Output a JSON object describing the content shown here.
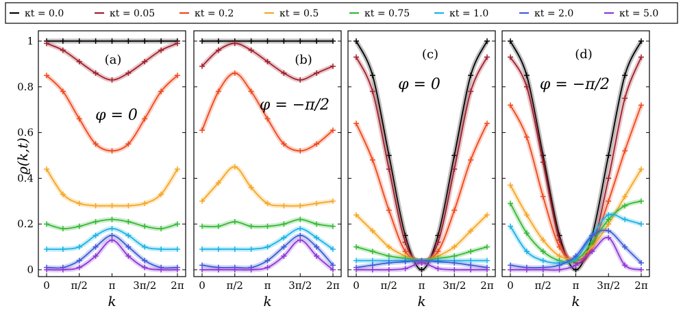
{
  "chart_data": {
    "type": "line",
    "ylabel": "ϱ(k,t)",
    "xlabel": "k",
    "ylim": [
      0,
      1
    ],
    "xlim": [
      0,
      6.2832
    ],
    "yticks": [
      "0",
      "0.2",
      "0.4",
      "0.6",
      "0.8",
      "1"
    ],
    "xticks": [
      "0",
      "π/2",
      "π",
      "3π/2",
      "2π"
    ],
    "legend_position": "top",
    "series_legend": [
      {
        "name": "κt = 0.0",
        "color": "#000000"
      },
      {
        "name": "κt = 0.05",
        "color": "#a11f2b"
      },
      {
        "name": "κt = 0.2",
        "color": "#f0471a"
      },
      {
        "name": "κt = 0.5",
        "color": "#f5a623"
      },
      {
        "name": "κt = 0.75",
        "color": "#33b833"
      },
      {
        "name": "κt = 1.0",
        "color": "#19b2e6"
      },
      {
        "name": "κt = 2.0",
        "color": "#3d5cd6"
      },
      {
        "name": "κt = 5.0",
        "color": "#8e36d6"
      }
    ],
    "panels": [
      {
        "label": "(a)",
        "annotation": "φ = 0",
        "series": [
          {
            "name": "κt = 0.0",
            "x": [
              0,
              0.785,
              1.571,
              2.356,
              3.142,
              3.927,
              4.712,
              5.498,
              6.283
            ],
            "values": [
              1,
              1,
              1,
              1,
              1,
              1,
              1,
              1,
              1
            ]
          },
          {
            "name": "κt = 0.05",
            "x": [
              0,
              0.785,
              1.571,
              2.356,
              3.142,
              3.927,
              4.712,
              5.498,
              6.283
            ],
            "values": [
              0.99,
              0.96,
              0.91,
              0.86,
              0.83,
              0.86,
              0.91,
              0.96,
              0.99
            ]
          },
          {
            "name": "κt = 0.2",
            "x": [
              0,
              0.785,
              1.571,
              2.356,
              3.142,
              3.927,
              4.712,
              5.498,
              6.283
            ],
            "values": [
              0.85,
              0.78,
              0.66,
              0.55,
              0.52,
              0.55,
              0.66,
              0.78,
              0.85
            ]
          },
          {
            "name": "κt = 0.5",
            "x": [
              0,
              0.785,
              1.571,
              2.356,
              3.142,
              3.927,
              4.712,
              5.498,
              6.283
            ],
            "values": [
              0.44,
              0.33,
              0.29,
              0.28,
              0.28,
              0.28,
              0.29,
              0.33,
              0.44
            ]
          },
          {
            "name": "κt = 0.75",
            "x": [
              0,
              0.785,
              1.571,
              2.356,
              3.142,
              3.927,
              4.712,
              5.498,
              6.283
            ],
            "values": [
              0.2,
              0.18,
              0.19,
              0.21,
              0.22,
              0.21,
              0.19,
              0.18,
              0.2
            ]
          },
          {
            "name": "κt = 1.0",
            "x": [
              0,
              0.785,
              1.571,
              2.356,
              3.142,
              3.927,
              4.712,
              5.498,
              6.283
            ],
            "values": [
              0.09,
              0.09,
              0.1,
              0.15,
              0.18,
              0.15,
              0.1,
              0.09,
              0.09
            ]
          },
          {
            "name": "κt = 2.0",
            "x": [
              0,
              0.785,
              1.571,
              2.356,
              3.142,
              3.927,
              4.712,
              5.498,
              6.283
            ],
            "values": [
              0.01,
              0.01,
              0.04,
              0.1,
              0.15,
              0.1,
              0.04,
              0.01,
              0.01
            ]
          },
          {
            "name": "κt = 5.0",
            "x": [
              0,
              0.785,
              1.571,
              2.356,
              3.142,
              3.927,
              4.712,
              5.498,
              6.283
            ],
            "values": [
              0,
              0,
              0.01,
              0.06,
              0.13,
              0.06,
              0.01,
              0,
              0
            ]
          }
        ]
      },
      {
        "label": "(b)",
        "annotation": "φ = −π/2",
        "series": [
          {
            "name": "κt = 0.0",
            "x": [
              0,
              0.785,
              1.571,
              2.356,
              3.142,
              3.927,
              4.712,
              5.498,
              6.283
            ],
            "values": [
              1,
              1,
              1,
              1,
              1,
              1,
              1,
              1,
              1
            ]
          },
          {
            "name": "κt = 0.05",
            "x": [
              0,
              0.785,
              1.571,
              2.356,
              3.142,
              3.927,
              4.712,
              5.498,
              6.283
            ],
            "values": [
              0.89,
              0.96,
              0.99,
              0.96,
              0.91,
              0.86,
              0.83,
              0.86,
              0.89
            ]
          },
          {
            "name": "κt = 0.2",
            "x": [
              0,
              0.785,
              1.571,
              2.356,
              3.142,
              3.927,
              4.712,
              5.498,
              6.283
            ],
            "values": [
              0.61,
              0.78,
              0.86,
              0.78,
              0.66,
              0.55,
              0.52,
              0.55,
              0.61
            ]
          },
          {
            "name": "κt = 0.5",
            "x": [
              0,
              0.785,
              1.571,
              2.356,
              3.142,
              3.927,
              4.712,
              5.498,
              6.283
            ],
            "values": [
              0.3,
              0.38,
              0.45,
              0.36,
              0.29,
              0.28,
              0.28,
              0.29,
              0.3
            ]
          },
          {
            "name": "κt = 0.75",
            "x": [
              0,
              0.785,
              1.571,
              2.356,
              3.142,
              3.927,
              4.712,
              5.498,
              6.283
            ],
            "values": [
              0.19,
              0.19,
              0.21,
              0.19,
              0.19,
              0.2,
              0.22,
              0.2,
              0.19
            ]
          },
          {
            "name": "κt = 1.0",
            "x": [
              0,
              0.785,
              1.571,
              2.356,
              3.142,
              3.927,
              4.712,
              5.498,
              6.283
            ],
            "values": [
              0.09,
              0.09,
              0.09,
              0.09,
              0.1,
              0.14,
              0.18,
              0.14,
              0.09
            ]
          },
          {
            "name": "κt = 2.0",
            "x": [
              0,
              0.785,
              1.571,
              2.356,
              3.142,
              3.927,
              4.712,
              5.498,
              6.283
            ],
            "values": [
              0.02,
              0.01,
              0.01,
              0.01,
              0.04,
              0.1,
              0.15,
              0.1,
              0.02
            ]
          },
          {
            "name": "κt = 5.0",
            "x": [
              0,
              0.785,
              1.571,
              2.356,
              3.142,
              3.927,
              4.712,
              5.498,
              6.283
            ],
            "values": [
              0,
              0,
              0,
              0,
              0.01,
              0.06,
              0.13,
              0.06,
              0
            ]
          }
        ]
      },
      {
        "label": "(c)",
        "annotation": "φ = 0",
        "series": [
          {
            "name": "κt = 0.0",
            "x": [
              0,
              0.785,
              1.571,
              2.356,
              3.142,
              3.927,
              4.712,
              5.498,
              6.283
            ],
            "values": [
              1,
              0.85,
              0.5,
              0.15,
              0,
              0.15,
              0.5,
              0.85,
              1
            ]
          },
          {
            "name": "κt = 0.05",
            "x": [
              0,
              0.785,
              1.571,
              2.356,
              3.142,
              3.927,
              4.712,
              5.498,
              6.283
            ],
            "values": [
              0.93,
              0.78,
              0.44,
              0.12,
              0.03,
              0.12,
              0.44,
              0.78,
              0.93
            ]
          },
          {
            "name": "κt = 0.2",
            "x": [
              0,
              0.785,
              1.571,
              2.356,
              3.142,
              3.927,
              4.712,
              5.498,
              6.283
            ],
            "values": [
              0.64,
              0.48,
              0.26,
              0.08,
              0.04,
              0.08,
              0.26,
              0.48,
              0.64
            ]
          },
          {
            "name": "κt = 0.5",
            "x": [
              0,
              0.785,
              1.571,
              2.356,
              3.142,
              3.927,
              4.712,
              5.498,
              6.283
            ],
            "values": [
              0.24,
              0.17,
              0.1,
              0.06,
              0.04,
              0.06,
              0.1,
              0.17,
              0.24
            ]
          },
          {
            "name": "κt = 0.75",
            "x": [
              0,
              0.785,
              1.571,
              2.356,
              3.142,
              3.927,
              4.712,
              5.498,
              6.283
            ],
            "values": [
              0.1,
              0.08,
              0.06,
              0.05,
              0.04,
              0.05,
              0.06,
              0.08,
              0.1
            ]
          },
          {
            "name": "κt = 1.0",
            "x": [
              0,
              0.785,
              1.571,
              2.356,
              3.142,
              3.927,
              4.712,
              5.498,
              6.283
            ],
            "values": [
              0.04,
              0.04,
              0.04,
              0.04,
              0.04,
              0.04,
              0.04,
              0.04,
              0.04
            ]
          },
          {
            "name": "κt = 2.0",
            "x": [
              0,
              0.785,
              1.571,
              2.356,
              3.142,
              3.927,
              4.712,
              5.498,
              6.283
            ],
            "values": [
              0.01,
              0.02,
              0.03,
              0.035,
              0.04,
              0.035,
              0.03,
              0.02,
              0.01
            ]
          },
          {
            "name": "κt = 5.0",
            "x": [
              0,
              0.785,
              1.571,
              2.356,
              3.142,
              3.927,
              4.712,
              5.498,
              6.283
            ],
            "values": [
              0,
              0,
              0,
              0.005,
              0.03,
              0.005,
              0,
              0,
              0
            ]
          }
        ]
      },
      {
        "label": "(d)",
        "annotation": "φ = −π/2",
        "series": [
          {
            "name": "κt = 0.0",
            "x": [
              0,
              0.785,
              1.571,
              2.356,
              3.142,
              3.927,
              4.712,
              5.498,
              6.283
            ],
            "values": [
              1,
              0.85,
              0.5,
              0.15,
              0,
              0.15,
              0.5,
              0.85,
              1
            ]
          },
          {
            "name": "κt = 0.05",
            "x": [
              0,
              0.785,
              1.571,
              2.356,
              3.142,
              3.927,
              4.712,
              5.498,
              6.283
            ],
            "values": [
              0.93,
              0.8,
              0.47,
              0.13,
              0.03,
              0.1,
              0.4,
              0.75,
              0.93
            ]
          },
          {
            "name": "κt = 0.2",
            "x": [
              0,
              0.785,
              1.571,
              2.356,
              3.142,
              3.927,
              4.712,
              5.498,
              6.283
            ],
            "values": [
              0.72,
              0.58,
              0.32,
              0.1,
              0.04,
              0.1,
              0.3,
              0.52,
              0.72
            ]
          },
          {
            "name": "κt = 0.5",
            "x": [
              0,
              0.785,
              1.571,
              2.356,
              3.142,
              3.927,
              4.712,
              5.498,
              6.283
            ],
            "values": [
              0.37,
              0.24,
              0.13,
              0.06,
              0.05,
              0.1,
              0.2,
              0.32,
              0.44
            ]
          },
          {
            "name": "κt = 0.75",
            "x": [
              0,
              0.785,
              1.571,
              2.356,
              3.142,
              3.927,
              4.712,
              5.498,
              6.283
            ],
            "values": [
              0.29,
              0.16,
              0.08,
              0.04,
              0.04,
              0.12,
              0.22,
              0.28,
              0.3
            ]
          },
          {
            "name": "κt = 1.0",
            "x": [
              0,
              0.785,
              1.571,
              2.356,
              3.142,
              3.927,
              4.712,
              5.498,
              6.283
            ],
            "values": [
              0.19,
              0.08,
              0.04,
              0.03,
              0.05,
              0.15,
              0.24,
              0.22,
              0.2
            ]
          },
          {
            "name": "κt = 2.0",
            "x": [
              0,
              0.785,
              1.571,
              2.356,
              3.142,
              3.927,
              4.712,
              5.498,
              6.283
            ],
            "values": [
              0.02,
              0.01,
              0.01,
              0.02,
              0.06,
              0.15,
              0.17,
              0.1,
              0.03
            ]
          },
          {
            "name": "κt = 5.0",
            "x": [
              0,
              0.785,
              1.571,
              2.356,
              3.142,
              3.927,
              4.712,
              5.498,
              6.283
            ],
            "values": [
              0,
              0,
              0,
              0,
              0.02,
              0.08,
              0.14,
              0.02,
              0
            ]
          }
        ]
      }
    ]
  }
}
